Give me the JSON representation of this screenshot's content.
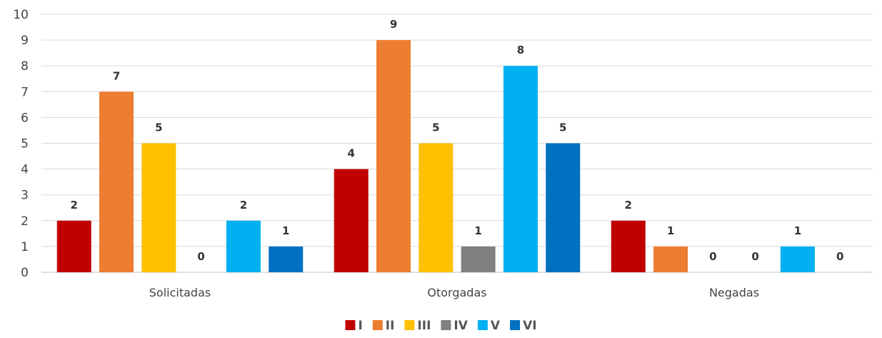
{
  "chart_data": {
    "type": "bar",
    "title": "",
    "xlabel": "",
    "ylabel": "",
    "categories": [
      "Solicitadas",
      "Otorgadas",
      "Negadas"
    ],
    "ylim": [
      0,
      10
    ],
    "yticks": [
      0,
      1,
      2,
      3,
      4,
      5,
      6,
      7,
      8,
      9,
      10
    ],
    "grid": true,
    "legend_position": "bottom-center",
    "data_labels": true,
    "series": [
      {
        "name": "I",
        "color": "#C00000",
        "values": [
          2,
          4,
          2
        ]
      },
      {
        "name": "II",
        "color": "#ED7D31",
        "values": [
          7,
          9,
          1
        ]
      },
      {
        "name": "III",
        "color": "#FFC000",
        "values": [
          5,
          5,
          0
        ]
      },
      {
        "name": "IV",
        "color": "#808080",
        "values": [
          0,
          1,
          0
        ]
      },
      {
        "name": "V",
        "color": "#00B0F0",
        "values": [
          2,
          8,
          1
        ]
      },
      {
        "name": "VI",
        "color": "#0070C0",
        "values": [
          1,
          5,
          0
        ]
      }
    ]
  }
}
